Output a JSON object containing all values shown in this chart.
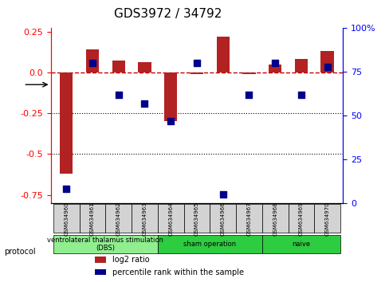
{
  "title": "GDS3972 / 34792",
  "samples": [
    "GSM634960",
    "GSM634961",
    "GSM634962",
    "GSM634963",
    "GSM634964",
    "GSM634965",
    "GSM634966",
    "GSM634967",
    "GSM634968",
    "GSM634969",
    "GSM634970"
  ],
  "log2_ratio": [
    -0.62,
    0.14,
    0.07,
    0.06,
    -0.3,
    -0.01,
    0.22,
    -0.01,
    0.05,
    0.08,
    0.13
  ],
  "percentile_rank": [
    8,
    80,
    62,
    57,
    47,
    80,
    5,
    62,
    80,
    62,
    78
  ],
  "ylim_left": [
    -0.8,
    0.27
  ],
  "ylim_right": [
    0,
    100
  ],
  "yticks_left": [
    0.25,
    0.0,
    -0.25,
    -0.5,
    -0.75
  ],
  "yticks_right": [
    100,
    75,
    50,
    25,
    0
  ],
  "bar_color": "#b22222",
  "dot_color": "#00008b",
  "ref_line_color": "#cc0000",
  "dotted_line_color": "#000000",
  "grid_dotted_vals": [
    -0.25,
    -0.5
  ],
  "protocols": [
    {
      "label": "ventrolateral thalamus stimulation\n(DBS)",
      "start": 0,
      "end": 3,
      "color": "#90ee90"
    },
    {
      "label": "sham operation",
      "start": 4,
      "end": 7,
      "color": "#2ecc40"
    },
    {
      "label": "naive",
      "start": 8,
      "end": 10,
      "color": "#2ecc40"
    }
  ],
  "legend_red": "log2 ratio",
  "legend_blue": "percentile rank within the sample",
  "bar_width": 0.5,
  "dot_size": 40,
  "title_fontsize": 11,
  "tick_fontsize": 8,
  "label_fontsize": 8
}
